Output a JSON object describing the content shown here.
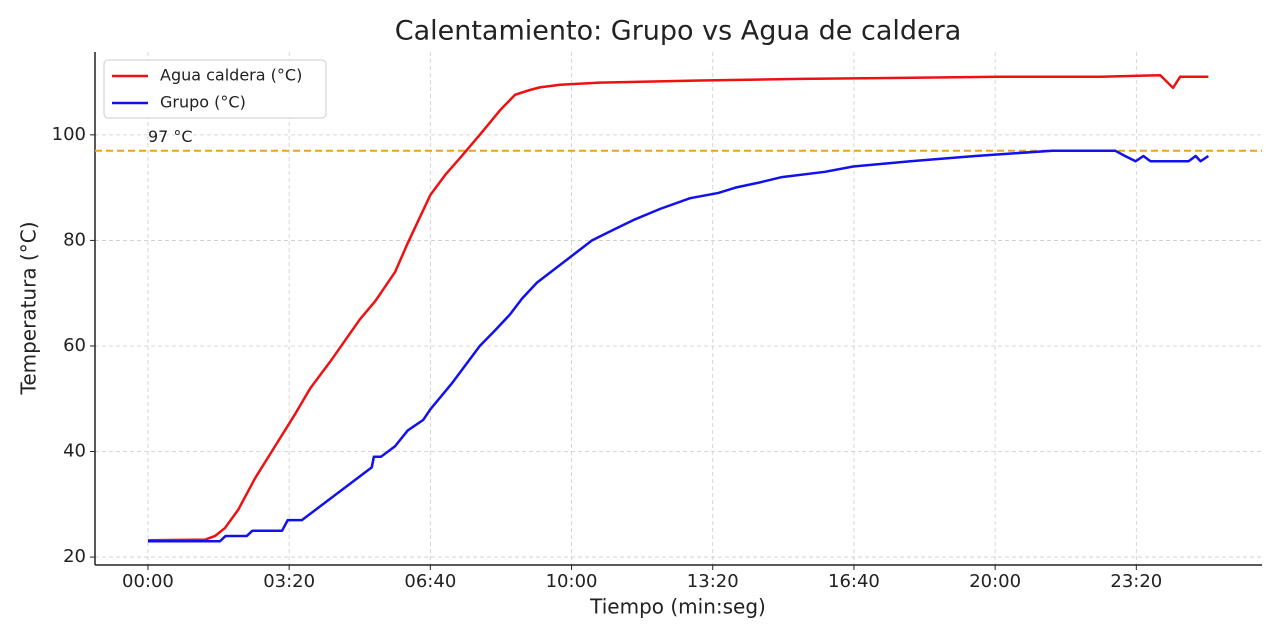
{
  "chart_data": {
    "type": "line",
    "title": "Calentamiento: Grupo vs Agua de caldera",
    "x_label": "Tiempo (min:seg)",
    "y_label": "Temperatura (°C)",
    "xlim": [
      -75,
      1578
    ],
    "ylim": [
      18.5,
      115.7
    ],
    "xticks": [
      {
        "value": 0,
        "label": "00:00"
      },
      {
        "value": 200,
        "label": "03:20"
      },
      {
        "value": 400,
        "label": "06:40"
      },
      {
        "value": 600,
        "label": "10:00"
      },
      {
        "value": 800,
        "label": "13:20"
      },
      {
        "value": 1000,
        "label": "16:40"
      },
      {
        "value": 1200,
        "label": "20:00"
      },
      {
        "value": 1400,
        "label": "23:20"
      }
    ],
    "yticks": [
      20,
      40,
      60,
      80,
      100
    ],
    "grid": true,
    "legend": "upper left",
    "reference_line": {
      "value": 97,
      "label": "97 °C",
      "color": "#f0a020"
    },
    "series": [
      {
        "name": "Agua caldera (°C)",
        "color": "#ee1111",
        "x": [
          0,
          81,
          95,
          109,
          128,
          152,
          180,
          208,
          230,
          258,
          279,
          300,
          322,
          350,
          368,
          400,
          421,
          442,
          470,
          499,
          520,
          541,
          555,
          584,
          640,
          782,
          924,
          1066,
          1207,
          1349,
          1434,
          1452,
          1462,
          1491,
          1502
        ],
        "values": [
          23.2,
          23.3,
          24,
          25.5,
          29,
          35,
          41,
          47,
          52,
          57,
          61,
          65,
          68.5,
          74,
          79.5,
          88.6,
          92.4,
          95.6,
          100,
          104.7,
          107.6,
          108.5,
          109,
          109.5,
          109.9,
          110.3,
          110.6,
          110.8,
          111,
          111,
          111.3,
          108.9,
          111,
          111,
          111
        ]
      },
      {
        "name": "Grupo (°C)",
        "color": "#1111ee",
        "x": [
          0,
          102,
          110,
          140,
          148,
          190,
          198,
          218,
          317,
          320,
          330,
          350,
          368,
          390,
          400,
          431,
          470,
          492,
          513,
          530,
          551,
          629,
          659,
          690,
          726,
          768,
          808,
          832,
          867,
          898,
          959,
          999,
          1080,
          1172,
          1281,
          1370,
          1384,
          1399,
          1410,
          1420,
          1474,
          1484,
          1491,
          1502
        ],
        "values": [
          23,
          23,
          24,
          24,
          25,
          25,
          27,
          27,
          37,
          39,
          39,
          41,
          44,
          46,
          48,
          53,
          60,
          63,
          66,
          69,
          72,
          80,
          82,
          84,
          86,
          88,
          89,
          90,
          91,
          92,
          93,
          94,
          95,
          96,
          97,
          97,
          96,
          95,
          96,
          95,
          95,
          96,
          95,
          96
        ]
      }
    ]
  }
}
